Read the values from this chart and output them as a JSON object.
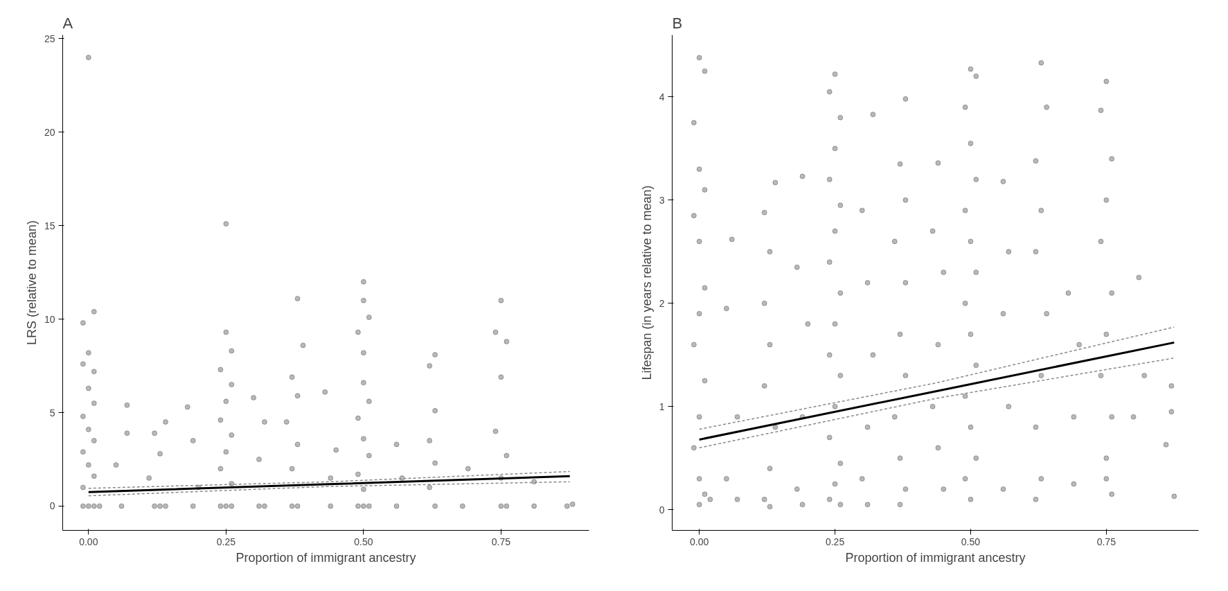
{
  "chart_data": [
    {
      "type": "scatter",
      "title": "A",
      "xlabel": "Proportion of immigrant ancestry",
      "ylabel": "LRS (relative to mean)",
      "xlim": [
        -0.047,
        0.91
      ],
      "ylim": [
        -1.3,
        25.2
      ],
      "xticks": [
        {
          "value": 0,
          "label": "0.00"
        },
        {
          "value": 0.25,
          "label": "0.25"
        },
        {
          "value": 0.5,
          "label": "0.50"
        },
        {
          "value": 0.75,
          "label": "0.75"
        }
      ],
      "yticks": [
        0,
        5,
        10,
        15,
        20,
        25
      ],
      "grid": false,
      "series": [
        {
          "color": "#000000",
          "marker": "circle",
          "x": [
            0.0,
            0.01,
            -0.01,
            0.0,
            -0.01,
            0.01,
            0.0,
            0.01,
            -0.01,
            0.0,
            0.01,
            -0.01,
            0.0,
            0.01,
            -0.01,
            0.0,
            0.01,
            -0.01,
            0.02,
            0.07,
            0.05,
            0.06,
            0.07,
            0.14,
            0.12,
            0.13,
            0.11,
            0.12,
            0.13,
            0.14,
            0.18,
            0.19,
            0.2,
            0.19,
            0.25,
            0.25,
            0.26,
            0.24,
            0.26,
            0.25,
            0.24,
            0.26,
            0.25,
            0.24,
            0.26,
            0.25,
            0.24,
            0.26,
            0.3,
            0.32,
            0.31,
            0.31,
            0.32,
            0.38,
            0.39,
            0.37,
            0.38,
            0.36,
            0.38,
            0.37,
            0.38,
            0.37,
            0.43,
            0.45,
            0.44,
            0.44,
            0.5,
            0.5,
            0.51,
            0.49,
            0.5,
            0.5,
            0.51,
            0.49,
            0.5,
            0.51,
            0.49,
            0.5,
            0.5,
            0.51,
            0.49,
            0.56,
            0.57,
            0.56,
            0.63,
            0.62,
            0.63,
            0.62,
            0.63,
            0.62,
            0.63,
            0.69,
            0.68,
            0.75,
            0.74,
            0.76,
            0.75,
            0.74,
            0.76,
            0.75,
            0.75,
            0.76,
            0.81,
            0.81,
            0.87,
            0.88
          ],
          "values": [
            24.0,
            10.4,
            9.8,
            8.2,
            7.6,
            7.2,
            6.3,
            5.5,
            4.8,
            4.1,
            3.5,
            2.9,
            2.2,
            1.6,
            1.0,
            0.0,
            0.0,
            0.0,
            0.0,
            5.4,
            2.2,
            0.0,
            3.9,
            4.5,
            3.9,
            2.8,
            1.5,
            0.0,
            0.0,
            0.0,
            5.3,
            3.5,
            1.0,
            0.0,
            15.1,
            9.3,
            8.3,
            7.3,
            6.5,
            5.6,
            4.6,
            3.8,
            2.9,
            2.0,
            1.2,
            0.0,
            0.0,
            0.0,
            5.8,
            4.5,
            2.5,
            0.0,
            0.0,
            11.1,
            8.6,
            6.9,
            5.9,
            4.5,
            3.3,
            2.0,
            0.0,
            0.0,
            6.1,
            3.0,
            1.5,
            0.0,
            12.0,
            11.0,
            10.1,
            9.3,
            8.2,
            6.6,
            5.6,
            4.7,
            3.6,
            2.7,
            1.7,
            0.9,
            0.0,
            0.0,
            0.0,
            3.3,
            1.5,
            0.0,
            8.1,
            7.5,
            5.1,
            3.5,
            2.3,
            1.0,
            0.0,
            2.0,
            0.0,
            11.0,
            9.3,
            8.8,
            6.9,
            4.0,
            2.7,
            1.5,
            0.0,
            0.0,
            1.3,
            0.0,
            0.0,
            0.1
          ]
        },
        {
          "type": "line",
          "color": "#000000",
          "line_style": "solid",
          "x": [
            0,
            0.4375,
            0.875
          ],
          "values": [
            0.75,
            1.17,
            1.6
          ]
        },
        {
          "type": "line",
          "color": "#888888",
          "line_style": "dashed",
          "x": [
            0,
            0.4375,
            0.875
          ],
          "values": [
            0.55,
            1.05,
            1.3
          ]
        },
        {
          "type": "line",
          "color": "#888888",
          "line_style": "dashed",
          "x": [
            0,
            0.4375,
            0.875
          ],
          "values": [
            0.95,
            1.3,
            1.85
          ]
        }
      ]
    },
    {
      "type": "scatter",
      "title": "B",
      "xlabel": "Proportion of immigrant ancestry",
      "ylabel": "Lifespan (in years relative to mean)",
      "xlim": [
        -0.05,
        0.92
      ],
      "ylim": [
        -0.2,
        4.6
      ],
      "xticks": [
        {
          "value": 0,
          "label": "0.00"
        },
        {
          "value": 0.25,
          "label": "0.25"
        },
        {
          "value": 0.5,
          "label": "0.50"
        },
        {
          "value": 0.75,
          "label": "0.75"
        }
      ],
      "yticks": [
        0,
        1,
        2,
        3,
        4
      ],
      "grid": false,
      "series": [
        {
          "color": "#000000",
          "marker": "circle",
          "x": [
            0.0,
            0.01,
            -0.01,
            0.0,
            0.01,
            -0.01,
            0.0,
            0.01,
            0.0,
            -0.01,
            0.01,
            0.0,
            -0.01,
            0.0,
            0.01,
            0.0,
            0.02,
            0.06,
            0.05,
            0.07,
            0.05,
            0.07,
            0.12,
            0.13,
            0.14,
            0.12,
            0.13,
            0.12,
            0.14,
            0.13,
            0.12,
            0.13,
            0.19,
            0.18,
            0.2,
            0.19,
            0.18,
            0.19,
            0.25,
            0.24,
            0.26,
            0.25,
            0.24,
            0.26,
            0.25,
            0.24,
            0.26,
            0.25,
            0.24,
            0.26,
            0.25,
            0.24,
            0.26,
            0.25,
            0.24,
            0.26,
            0.32,
            0.3,
            0.31,
            0.32,
            0.31,
            0.3,
            0.31,
            0.38,
            0.37,
            0.38,
            0.36,
            0.38,
            0.37,
            0.38,
            0.36,
            0.37,
            0.38,
            0.37,
            0.44,
            0.43,
            0.45,
            0.44,
            0.43,
            0.44,
            0.45,
            0.5,
            0.51,
            0.49,
            0.5,
            0.51,
            0.49,
            0.5,
            0.51,
            0.49,
            0.5,
            0.51,
            0.49,
            0.5,
            0.51,
            0.49,
            0.5,
            0.56,
            0.57,
            0.56,
            0.57,
            0.56,
            0.63,
            0.64,
            0.62,
            0.63,
            0.62,
            0.64,
            0.63,
            0.62,
            0.63,
            0.62,
            0.68,
            0.7,
            0.69,
            0.69,
            0.75,
            0.74,
            0.76,
            0.75,
            0.74,
            0.76,
            0.75,
            0.74,
            0.76,
            0.75,
            0.75,
            0.76,
            0.81,
            0.82,
            0.8,
            0.87,
            0.87,
            0.86,
            0.875
          ],
          "values": [
            4.38,
            4.25,
            3.75,
            3.3,
            3.1,
            2.85,
            2.6,
            2.15,
            1.9,
            1.6,
            1.25,
            0.9,
            0.6,
            0.3,
            0.15,
            0.05,
            0.1,
            2.62,
            1.95,
            0.9,
            0.3,
            0.1,
            2.88,
            2.5,
            3.17,
            2.0,
            1.6,
            1.2,
            0.8,
            0.4,
            0.1,
            0.03,
            3.23,
            2.35,
            1.8,
            0.9,
            0.2,
            0.05,
            4.22,
            4.05,
            3.8,
            3.5,
            3.2,
            2.95,
            2.7,
            2.4,
            2.1,
            1.8,
            1.5,
            1.3,
            1.0,
            0.7,
            0.45,
            0.25,
            0.1,
            0.05,
            3.83,
            2.9,
            2.2,
            1.5,
            0.8,
            0.3,
            0.05,
            3.98,
            3.35,
            3.0,
            2.6,
            2.2,
            1.7,
            1.3,
            0.9,
            0.5,
            0.2,
            0.05,
            3.36,
            2.7,
            2.3,
            1.6,
            1.0,
            0.6,
            0.2,
            4.27,
            4.2,
            3.9,
            3.55,
            3.2,
            2.9,
            2.6,
            2.3,
            2.0,
            1.7,
            1.4,
            1.1,
            0.8,
            0.5,
            0.3,
            0.1,
            3.18,
            2.5,
            1.9,
            1.0,
            0.2,
            4.33,
            3.9,
            3.38,
            2.9,
            2.5,
            1.9,
            1.3,
            0.8,
            0.3,
            0.1,
            2.1,
            1.6,
            0.9,
            0.25,
            4.15,
            3.87,
            3.4,
            3.0,
            2.6,
            2.1,
            1.7,
            1.3,
            0.9,
            0.5,
            0.3,
            0.15,
            2.25,
            1.3,
            0.9,
            1.2,
            0.95,
            0.63,
            0.13
          ]
        },
        {
          "type": "line",
          "color": "#000000",
          "line_style": "solid",
          "x": [
            0,
            0.4375,
            0.875
          ],
          "values": [
            0.68,
            1.15,
            1.62
          ]
        },
        {
          "type": "line",
          "color": "#888888",
          "line_style": "dashed",
          "x": [
            0,
            0.4375,
            0.875
          ],
          "values": [
            0.6,
            1.08,
            1.47
          ]
        },
        {
          "type": "line",
          "color": "#888888",
          "line_style": "dashed",
          "x": [
            0,
            0.4375,
            0.875
          ],
          "values": [
            0.78,
            1.23,
            1.77
          ]
        }
      ]
    }
  ]
}
